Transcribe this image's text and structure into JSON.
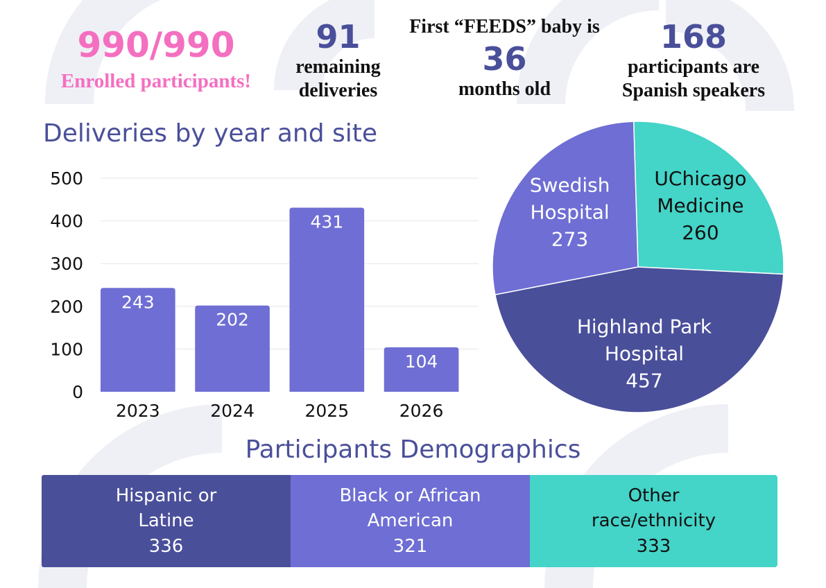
{
  "colors": {
    "navy": "#4a4f9a",
    "purple": "#6e6ed4",
    "teal": "#44d4c8",
    "pink": "#f46fc0",
    "deco": "#eef0f6"
  },
  "stats": {
    "enrolled": {
      "value": "990/990",
      "label": "Enrolled participants!"
    },
    "remaining": {
      "value": "91",
      "label_line1": "remaining",
      "label_line2": "deliveries"
    },
    "feeds": {
      "pre": "First “FEEDS” baby is",
      "value": "36",
      "label": "months old"
    },
    "spanish": {
      "value": "168",
      "label_line1": "participants are",
      "label_line2": "Spanish speakers"
    }
  },
  "titles": {
    "deliveries": "Deliveries by year and site",
    "demographics": "Participants Demographics"
  },
  "chart_data": [
    {
      "type": "bar",
      "title": "Deliveries by year and site",
      "categories": [
        "2023",
        "2024",
        "2025",
        "2026"
      ],
      "values": [
        243,
        202,
        431,
        104
      ],
      "yticks": [
        0,
        100,
        200,
        300,
        400,
        500
      ],
      "ylim": [
        0,
        500
      ],
      "grid": true,
      "color": "#6e6ed4"
    },
    {
      "type": "pie",
      "slices": [
        {
          "label_lines": [
            "UChicago",
            "Medicine"
          ],
          "value": 260,
          "color": "#44d4c8"
        },
        {
          "label_lines": [
            "Highland Park",
            "Hospital"
          ],
          "value": 457,
          "color": "#4a4f9a"
        },
        {
          "label_lines": [
            "Swedish",
            "Hospital"
          ],
          "value": 273,
          "color": "#6e6ed4"
        }
      ]
    }
  ],
  "demographics": [
    {
      "line1": "Hispanic or",
      "line2": "Latine",
      "value": "336"
    },
    {
      "line1": "Black or African",
      "line2": "American",
      "value": "321"
    },
    {
      "line1": "Other",
      "line2": "race/ethnicity",
      "value": "333"
    }
  ]
}
